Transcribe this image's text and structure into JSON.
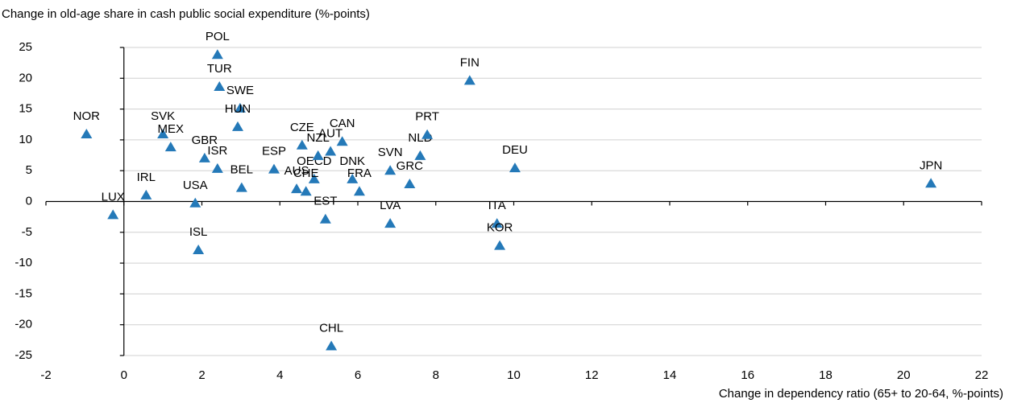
{
  "chart_data": {
    "type": "scatter",
    "ylabel": "Change in old-age share in cash public social expenditure (%-points)",
    "xlabel": "Change in dependency ratio (65+ to 20-64, %-points)",
    "color": "#2479b8",
    "grid": true,
    "xlim": [
      -2,
      22
    ],
    "xticks": [
      -2,
      0,
      2,
      4,
      6,
      8,
      10,
      12,
      14,
      16,
      18,
      20,
      22
    ],
    "ylim": [
      -25,
      25
    ],
    "yticks": [
      -25,
      -20,
      -15,
      -10,
      -5,
      0,
      5,
      10,
      15,
      20,
      25
    ],
    "labels": [
      "POL",
      "TUR",
      "SWE",
      "HUN",
      "NOR",
      "SVK",
      "MEX",
      "GBR",
      "ISR",
      "BEL",
      "ESP",
      "IRL",
      "USA",
      "LUX",
      "ISL",
      "CZE",
      "OECD",
      "AUT",
      "CAN",
      "NZL",
      "AUS",
      "CHE",
      "EST",
      "CHL",
      "DNK",
      "FRA",
      "SVN",
      "LVA",
      "GRC",
      "NLD",
      "PRT",
      "FIN",
      "DEU",
      "ITA",
      "KOR",
      "JPN"
    ],
    "x": [
      2.4,
      2.45,
      2.98,
      2.92,
      -0.96,
      1.0,
      1.2,
      2.07,
      2.4,
      3.02,
      3.85,
      0.57,
      1.83,
      -0.28,
      1.91,
      4.57,
      4.88,
      5.3,
      5.6,
      4.98,
      4.43,
      4.67,
      5.17,
      5.32,
      5.86,
      6.04,
      6.83,
      6.83,
      7.33,
      7.6,
      7.78,
      8.87,
      10.03,
      9.57,
      9.64,
      20.7
    ],
    "y": [
      23.8,
      18.6,
      15.1,
      12.1,
      10.9,
      10.9,
      8.8,
      7.0,
      5.3,
      2.2,
      5.2,
      1.0,
      -0.3,
      -2.2,
      -7.9,
      9.1,
      3.6,
      8.1,
      9.7,
      7.4,
      2.0,
      1.6,
      -2.9,
      -23.5,
      3.6,
      1.6,
      5.0,
      -3.6,
      2.8,
      7.4,
      10.8,
      19.6,
      5.4,
      -3.6,
      -7.2,
      2.9
    ]
  }
}
